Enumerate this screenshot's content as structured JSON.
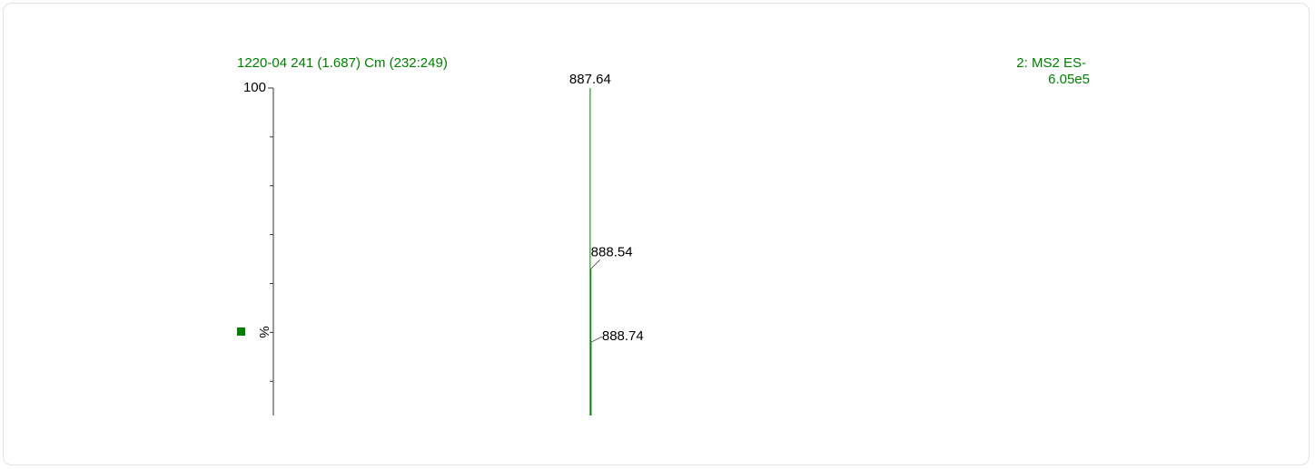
{
  "chart_data": {
    "type": "spectrum",
    "title": "1220-04 241 (1.687) Cm (232:249)",
    "function_label": "2: MS2 ES-",
    "intensity_label": "6.05e5",
    "ylabel": "%",
    "x": [
      887.64,
      888.54,
      888.74
    ],
    "values": [
      100,
      63,
      48
    ],
    "xlim": [
      500,
      1500
    ],
    "ylim": [
      33,
      100
    ],
    "yticks": [
      100
    ],
    "minor_yticks": [
      90,
      80,
      70,
      60,
      50,
      40
    ],
    "color": "#008000"
  }
}
